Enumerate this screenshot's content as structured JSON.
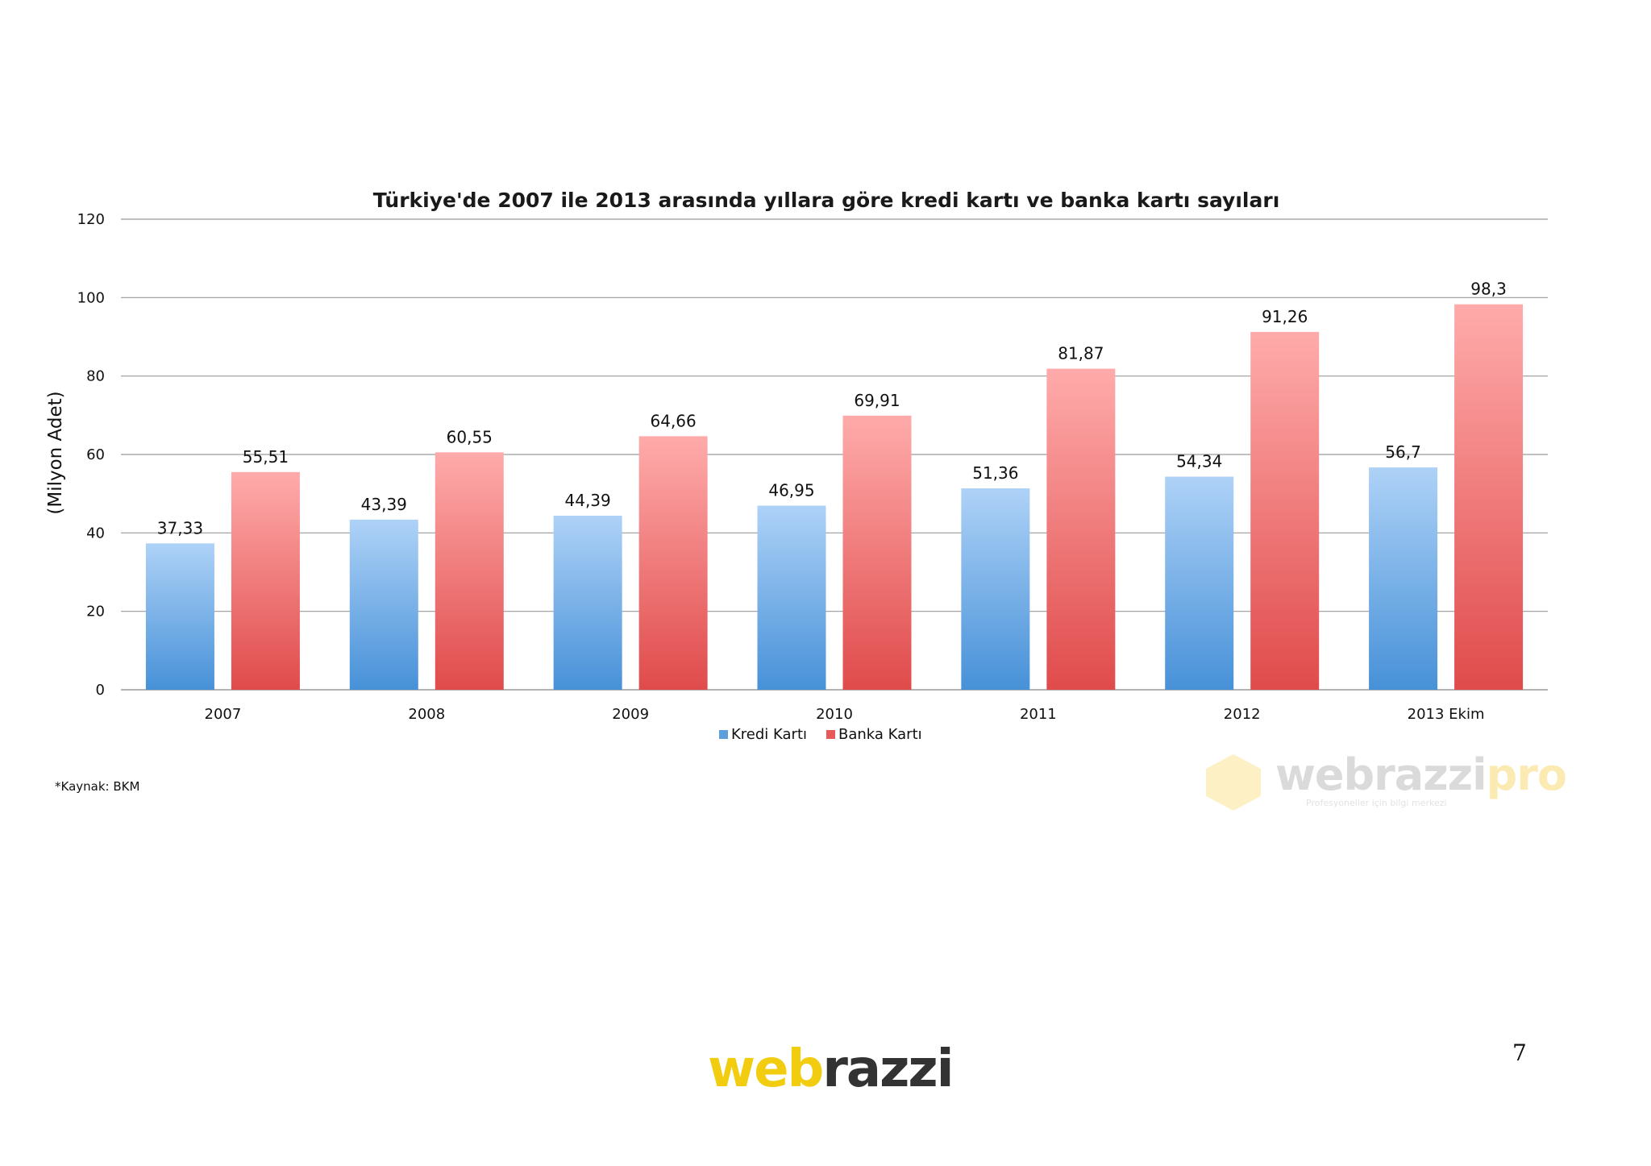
{
  "chart_data": {
    "type": "bar",
    "title": "Türkiye'de 2007 ile 2013 arasında yıllara göre kredi kartı ve banka kartı sayıları",
    "ylabel": "(Milyon Adet)",
    "xlabel": "",
    "ylim": [
      0,
      120
    ],
    "yticks": [
      "0",
      "20",
      "40",
      "60",
      "80",
      "100",
      "120"
    ],
    "categories": [
      "2007",
      "2008",
      "2009",
      "2010",
      "2011",
      "2012",
      "2013 Ekim"
    ],
    "series": [
      {
        "name": "Kredi Kartı",
        "color": "#5b9fdc",
        "values": [
          37.33,
          43.39,
          44.39,
          46.95,
          51.36,
          54.34,
          56.7
        ],
        "labels": [
          "37,33",
          "43,39",
          "44,39",
          "46,95",
          "51,36",
          "54,34",
          "56,7"
        ]
      },
      {
        "name": "Banka Kartı",
        "color": "#e85a5a",
        "values": [
          55.51,
          60.55,
          64.66,
          69.91,
          81.87,
          91.26,
          98.3
        ],
        "labels": [
          "55,51",
          "60,55",
          "64,66",
          "69,91",
          "81,87",
          "91,26",
          "98,3"
        ]
      }
    ],
    "grid": true,
    "legend": "bottom-center"
  },
  "source_note": "*Kaynak: BKM",
  "watermark": {
    "text_a": "webrazzi",
    "text_b": "pro",
    "subtitle": "Profesyoneller için bilgi merkezi"
  },
  "page_number": "7",
  "brand": {
    "part_a": "web",
    "part_b": "razzi"
  }
}
